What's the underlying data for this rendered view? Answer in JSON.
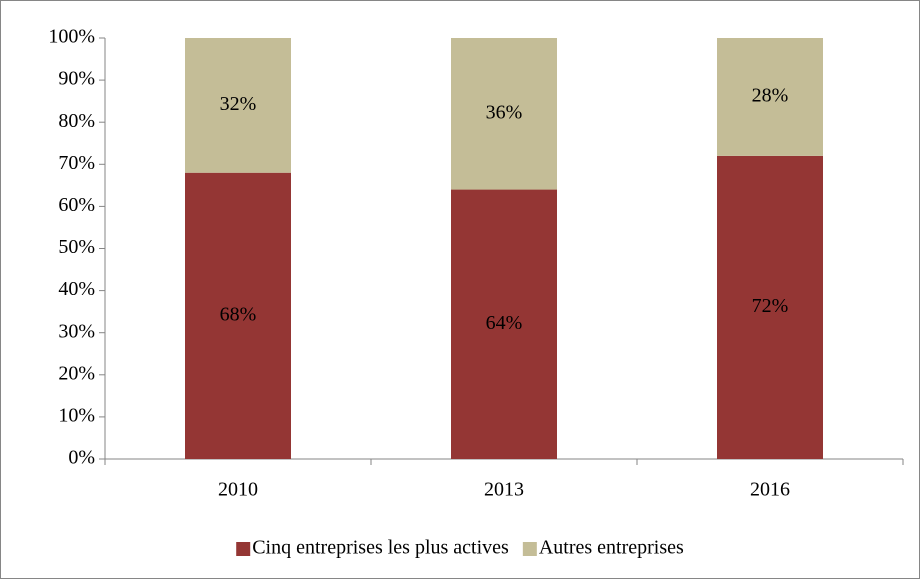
{
  "chart_data": {
    "type": "stacked_bar",
    "categories": [
      "2010",
      "2013",
      "2016"
    ],
    "series": [
      {
        "name": "Cinq entreprises les plus actives",
        "color": "#943634",
        "values": [
          68,
          64,
          72
        ],
        "value_labels": [
          "68%",
          "64%",
          "72%"
        ]
      },
      {
        "name": "Autres entreprises",
        "color": "#c4bd97",
        "values": [
          32,
          36,
          28
        ],
        "value_labels": [
          "32%",
          "36%",
          "28%"
        ]
      }
    ],
    "ylim": [
      0,
      100
    ],
    "yticks": [
      {
        "value": 0,
        "label": "0%"
      },
      {
        "value": 10,
        "label": "10%"
      },
      {
        "value": 20,
        "label": "20%"
      },
      {
        "value": 30,
        "label": "30%"
      },
      {
        "value": 40,
        "label": "40%"
      },
      {
        "value": 50,
        "label": "50%"
      },
      {
        "value": 60,
        "label": "60%"
      },
      {
        "value": 70,
        "label": "70%"
      },
      {
        "value": 80,
        "label": "80%"
      },
      {
        "value": 90,
        "label": "90%"
      },
      {
        "value": 100,
        "label": "100%"
      }
    ],
    "grid": false,
    "legend": "bottom"
  }
}
